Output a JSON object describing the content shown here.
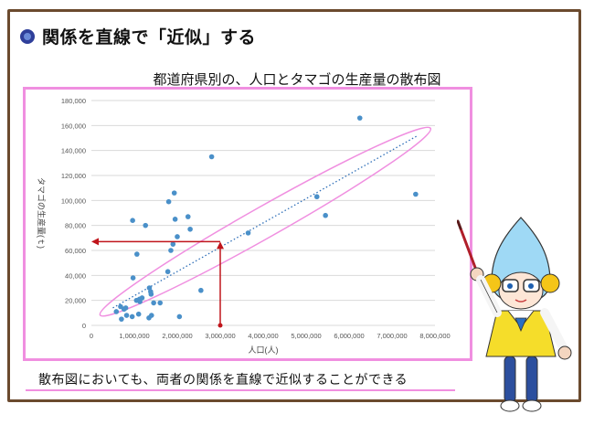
{
  "page": {
    "title": "関係を直線で「近似」する",
    "caption": "散布図においても、両者の関係を直線で近似することができる"
  },
  "colors": {
    "accent_pink": "#f08fe0",
    "frame_brown": "#6b4a2e",
    "point_blue": "#4a90c9",
    "arrow_red": "#c0151b"
  },
  "chart_data": {
    "type": "scatter",
    "title": "都道府県別の、人口とタマゴの生産量の散布図",
    "xlabel": "人口(人)",
    "ylabel": "タマゴの生産量(ｔ)",
    "xlim": [
      0,
      8000000
    ],
    "ylim": [
      0,
      180000
    ],
    "x_ticks": [
      0,
      1000000,
      2000000,
      3000000,
      4000000,
      5000000,
      6000000,
      7000000,
      8000000
    ],
    "x_tick_labels": [
      "0",
      "1,000,000",
      "2,000,000",
      "3,000,000",
      "4,000,000",
      "5,000,000",
      "6,000,000",
      "7,000,000",
      "8,000,000"
    ],
    "y_ticks": [
      0,
      20000,
      40000,
      60000,
      80000,
      100000,
      120000,
      140000,
      160000,
      180000
    ],
    "y_tick_labels": [
      "0",
      "20,000",
      "40,000",
      "60,000",
      "80,000",
      "100,000",
      "120,000",
      "140,000",
      "160,000",
      "180,000"
    ],
    "grid": true,
    "trendline": {
      "style": "dotted",
      "x": [
        500000,
        7600000
      ],
      "y": [
        14000,
        152000
      ]
    },
    "lookup_arrow": {
      "x": 3000000,
      "y": 67000
    },
    "points": [
      [
        580000,
        11000
      ],
      [
        680000,
        15000
      ],
      [
        700000,
        5000
      ],
      [
        760000,
        13000
      ],
      [
        800000,
        14000
      ],
      [
        820000,
        8000
      ],
      [
        950000,
        7000
      ],
      [
        960000,
        84000
      ],
      [
        970000,
        38000
      ],
      [
        1050000,
        20000
      ],
      [
        1060000,
        57000
      ],
      [
        1100000,
        9000
      ],
      [
        1120000,
        21000
      ],
      [
        1130000,
        19000
      ],
      [
        1180000,
        22000
      ],
      [
        1260000,
        80000
      ],
      [
        1340000,
        6000
      ],
      [
        1350000,
        30000
      ],
      [
        1380000,
        27000
      ],
      [
        1390000,
        25000
      ],
      [
        1400000,
        8000
      ],
      [
        1450000,
        18000
      ],
      [
        1600000,
        18000
      ],
      [
        1780000,
        43000
      ],
      [
        1800000,
        99000
      ],
      [
        1850000,
        60000
      ],
      [
        1900000,
        65000
      ],
      [
        1930000,
        106000
      ],
      [
        1950000,
        85000
      ],
      [
        2000000,
        71000
      ],
      [
        2050000,
        7000
      ],
      [
        2250000,
        87000
      ],
      [
        2300000,
        77000
      ],
      [
        2550000,
        28000
      ],
      [
        2800000,
        135000
      ],
      [
        3650000,
        74000
      ],
      [
        5250000,
        103000
      ],
      [
        5450000,
        88000
      ],
      [
        6250000,
        166000
      ],
      [
        7550000,
        105000
      ]
    ]
  }
}
